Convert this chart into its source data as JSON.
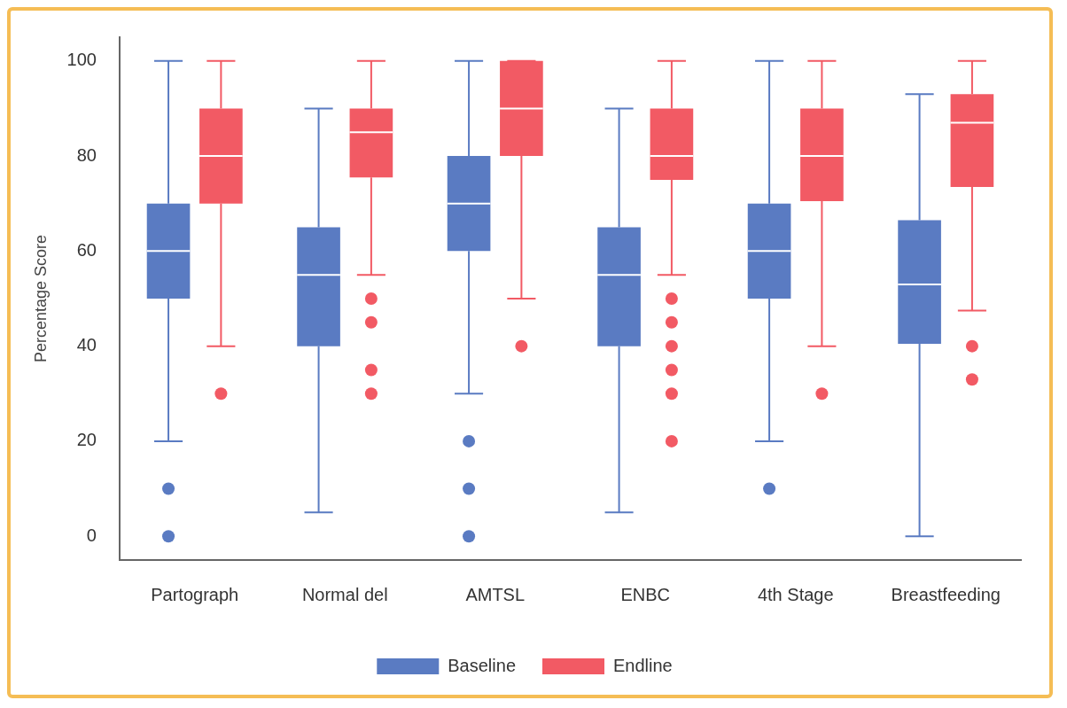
{
  "chart_data": {
    "type": "box",
    "ylabel": "Percentage Score",
    "categories": [
      "Partograph",
      "Normal del",
      "AMTSL",
      "ENBC",
      "4th Stage",
      "Breastfeeding"
    ],
    "ylim": [
      -5,
      105
    ],
    "yticks": [
      0,
      20,
      40,
      60,
      80,
      100
    ],
    "grid": false,
    "legend": "bottom",
    "series": [
      {
        "name": "Baseline",
        "color": "#5a7bc2",
        "boxes": [
          {
            "low": 20,
            "q1": 50,
            "median": 60,
            "q3": 70,
            "high": 100,
            "outliers": [
              10,
              0
            ]
          },
          {
            "low": 5,
            "q1": 40,
            "median": 55,
            "q3": 65,
            "high": 90
          },
          {
            "low": 30,
            "q1": 60,
            "median": 70,
            "q3": 80,
            "high": 100,
            "outliers": [
              20,
              10,
              0
            ]
          },
          {
            "low": 5,
            "q1": 40,
            "median": 55,
            "q3": 65,
            "high": 90
          },
          {
            "low": 20,
            "q1": 50,
            "median": 60,
            "q3": 70,
            "high": 100,
            "outliers": [
              10
            ]
          },
          {
            "low": 0,
            "q1": 40.5,
            "median": 53,
            "q3": 66.5,
            "high": 93
          }
        ]
      },
      {
        "name": "Endline",
        "color": "#f25a64",
        "boxes": [
          {
            "low": 40,
            "q1": 70,
            "median": 80,
            "q3": 90,
            "high": 100,
            "outliers": [
              30
            ]
          },
          {
            "low": 55,
            "q1": 75.5,
            "median": 85,
            "q3": 90,
            "high": 100,
            "outliers": [
              50,
              45,
              35,
              30
            ]
          },
          {
            "low": 50,
            "q1": 80,
            "median": 90,
            "q3": 100,
            "high": 100,
            "outliers": [
              40
            ]
          },
          {
            "low": 55,
            "q1": 75,
            "median": 80,
            "q3": 90,
            "high": 100,
            "outliers": [
              50,
              45,
              40,
              35,
              30,
              20
            ]
          },
          {
            "low": 40,
            "q1": 70.5,
            "median": 80,
            "q3": 90,
            "high": 100,
            "outliers": [
              30
            ]
          },
          {
            "low": 47.5,
            "q1": 73.5,
            "median": 87,
            "q3": 93,
            "high": 100,
            "outliers": [
              40,
              33
            ]
          }
        ]
      }
    ]
  }
}
